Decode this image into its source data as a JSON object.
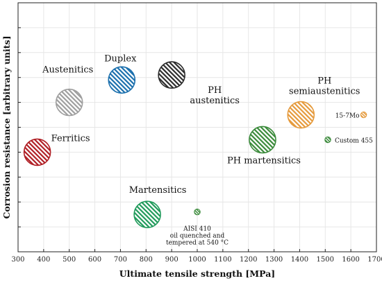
{
  "chart_data": {
    "type": "scatter",
    "xlabel": "Ultimate tensile strength [MPa]",
    "ylabel": "Corrosion resistance [arbitrary units]",
    "xlim": [
      300,
      1700
    ],
    "ylim": [
      0,
      10
    ],
    "x_ticks": [
      300,
      400,
      500,
      600,
      700,
      800,
      900,
      1000,
      1100,
      1200,
      1300,
      1400,
      1500,
      1600,
      1700
    ],
    "y_ticks": [
      1,
      2,
      3,
      4,
      5,
      6,
      7,
      8,
      9
    ],
    "grid": true,
    "points": [
      {
        "name": "Ferritics",
        "x": 375,
        "y": 4,
        "size": "large",
        "color": "#b01e24",
        "label": [
          "Ferritics"
        ]
      },
      {
        "name": "Austenitics",
        "x": 500,
        "y": 6,
        "size": "large",
        "color": "#9e9e9e",
        "label": [
          "Austenitics"
        ]
      },
      {
        "name": "Duplex",
        "x": 705,
        "y": 6.9,
        "size": "large",
        "color": "#1a6fad",
        "label": [
          "Duplex"
        ]
      },
      {
        "name": "PH austenitics",
        "x": 900,
        "y": 7.1,
        "size": "large",
        "color": "#2b2b2b",
        "label": [
          "PH",
          "austenitics"
        ]
      },
      {
        "name": "PH semiaustenitics",
        "x": 1405,
        "y": 5.5,
        "size": "large",
        "color": "#e59a3c",
        "label": [
          "PH",
          "semiaustenitics"
        ]
      },
      {
        "name": "PH martensitics",
        "x": 1255,
        "y": 4.5,
        "size": "large",
        "color": "#3a8a3a",
        "label": [
          "PH martensitics"
        ]
      },
      {
        "name": "Martensitics",
        "x": 805,
        "y": 1.5,
        "size": "large",
        "color": "#1f9a5a",
        "label": [
          "Martensitics"
        ]
      },
      {
        "name": "AISI 410",
        "x": 1000,
        "y": 1.6,
        "size": "small",
        "color": "#3a8a3a",
        "label": [
          "AISI 410",
          "oil quenched and",
          "tempered at 540 °C"
        ]
      },
      {
        "name": "15-7Mo",
        "x": 1650,
        "y": 5.5,
        "size": "small",
        "color": "#e59a3c",
        "label": [
          "15-7Mo"
        ]
      },
      {
        "name": "Custom 455",
        "x": 1510,
        "y": 4.5,
        "size": "small",
        "color": "#3a8a3a",
        "label": [
          "Custom 455"
        ]
      }
    ]
  }
}
